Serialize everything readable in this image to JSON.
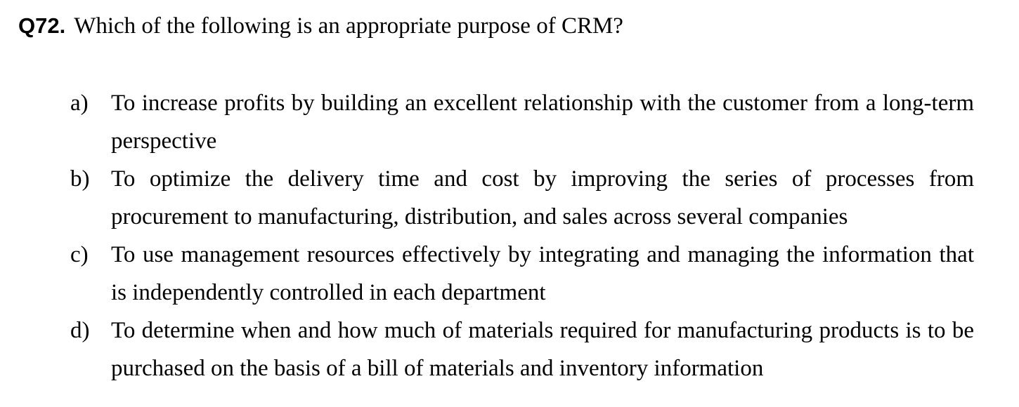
{
  "question": {
    "number": "Q72.",
    "text": "Which of the following is an appropriate purpose of CRM?"
  },
  "options": [
    {
      "letter": "a)",
      "text": "To increase profits by building an excellent relationship with the customer from a long-term perspective"
    },
    {
      "letter": "b)",
      "text": "To optimize the delivery time and cost by improving the series of processes from procurement to manufacturing, distribution, and sales across several companies"
    },
    {
      "letter": "c)",
      "text": "To use management resources effectively by integrating and managing the information that is independently controlled in each department"
    },
    {
      "letter": "d)",
      "text": "To determine when and how much of materials required for manufacturing products is to be purchased on the basis of a bill of materials and inventory information"
    }
  ]
}
